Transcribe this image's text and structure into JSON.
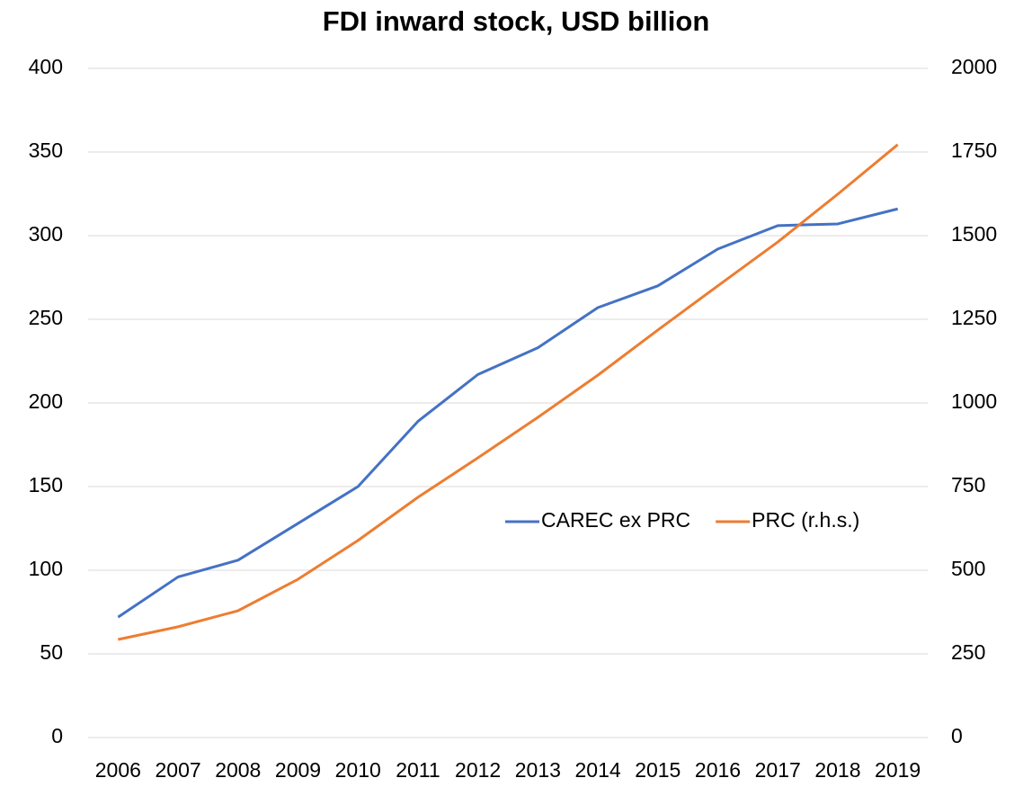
{
  "chart_data": {
    "type": "line",
    "title": "FDI inward stock, USD billion",
    "categories": [
      "2006",
      "2007",
      "2008",
      "2009",
      "2010",
      "2011",
      "2012",
      "2013",
      "2014",
      "2015",
      "2016",
      "2017",
      "2018",
      "2019"
    ],
    "series": [
      {
        "name": "CAREC ex PRC",
        "color": "#4472c4",
        "values": [
          72,
          96,
          106,
          128,
          150,
          189,
          217,
          233,
          257,
          270,
          292,
          306,
          307,
          316
        ]
      },
      {
        "name": "PRC (r.h.s.)",
        "color": "#ed7d31",
        "axis": "y2",
        "values": [
          293,
          331,
          379,
          473,
          589,
          718,
          836,
          957,
          1083,
          1218,
          1350,
          1481,
          1624,
          1772
        ]
      }
    ],
    "ylim": [
      0,
      400
    ],
    "yticks": [
      0,
      50,
      100,
      150,
      200,
      250,
      300,
      350,
      400
    ],
    "y2lim": [
      0,
      2000
    ],
    "y2ticks": [
      0,
      250,
      500,
      750,
      1000,
      1250,
      1500,
      1750,
      2000
    ],
    "grid": true,
    "legend": "center"
  }
}
